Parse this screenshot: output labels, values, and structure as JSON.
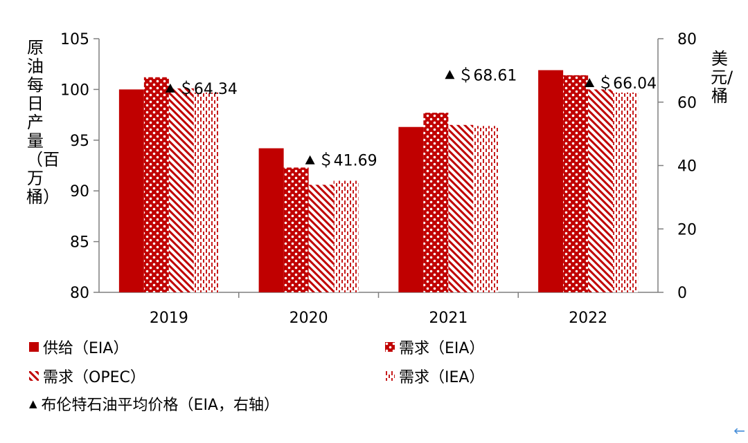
{
  "chart_data": {
    "type": "bar",
    "categories": [
      "2019",
      "2020",
      "2021",
      "2022"
    ],
    "series": [
      {
        "name": "供给（EIA）",
        "values": [
          100.0,
          94.2,
          96.3,
          101.9
        ],
        "axis": "left",
        "pattern": "solid"
      },
      {
        "name": "需求（EIA）",
        "values": [
          101.2,
          92.3,
          97.7,
          101.4
        ],
        "axis": "left",
        "pattern": "checker"
      },
      {
        "name": "需求（OPEC）",
        "values": [
          100.1,
          90.6,
          96.5,
          100.0
        ],
        "axis": "left",
        "pattern": "diagonal"
      },
      {
        "name": "需求（IEA）",
        "values": [
          99.7,
          91.0,
          96.4,
          99.7
        ],
        "axis": "left",
        "pattern": "dashed"
      }
    ],
    "price_series": {
      "name": "布伦特石油平均价格（EIA，右轴）",
      "values": [
        64.34,
        41.69,
        68.61,
        66.04
      ],
      "labels": [
        "＄64.34",
        "＄41.69",
        "＄68.61",
        "＄66.04"
      ],
      "axis": "right"
    },
    "ylabel_left": "原油每日产量（百万桶）",
    "ylabel_right": "美元/桶",
    "ylim_left": [
      80,
      105
    ],
    "yticks_left": [
      "80",
      "85",
      "90",
      "95",
      "100",
      "105"
    ],
    "ylim_right": [
      0,
      80
    ],
    "yticks_right": [
      "0",
      "20",
      "40",
      "60",
      "80"
    ],
    "grid": false,
    "legend_position": "bottom",
    "colors": {
      "bar": "#c00000",
      "marker": "#000000",
      "axis": "#7f7f7f"
    }
  },
  "legend": {
    "supply_eia": "供给（EIA）",
    "demand_eia": "需求（EIA）",
    "demand_opec": "需求（OPEC）",
    "demand_iea": "需求（IEA）",
    "brent_price": "布伦特石油平均价格（EIA，右轴）"
  },
  "corner_icon": "back-arrow-icon"
}
